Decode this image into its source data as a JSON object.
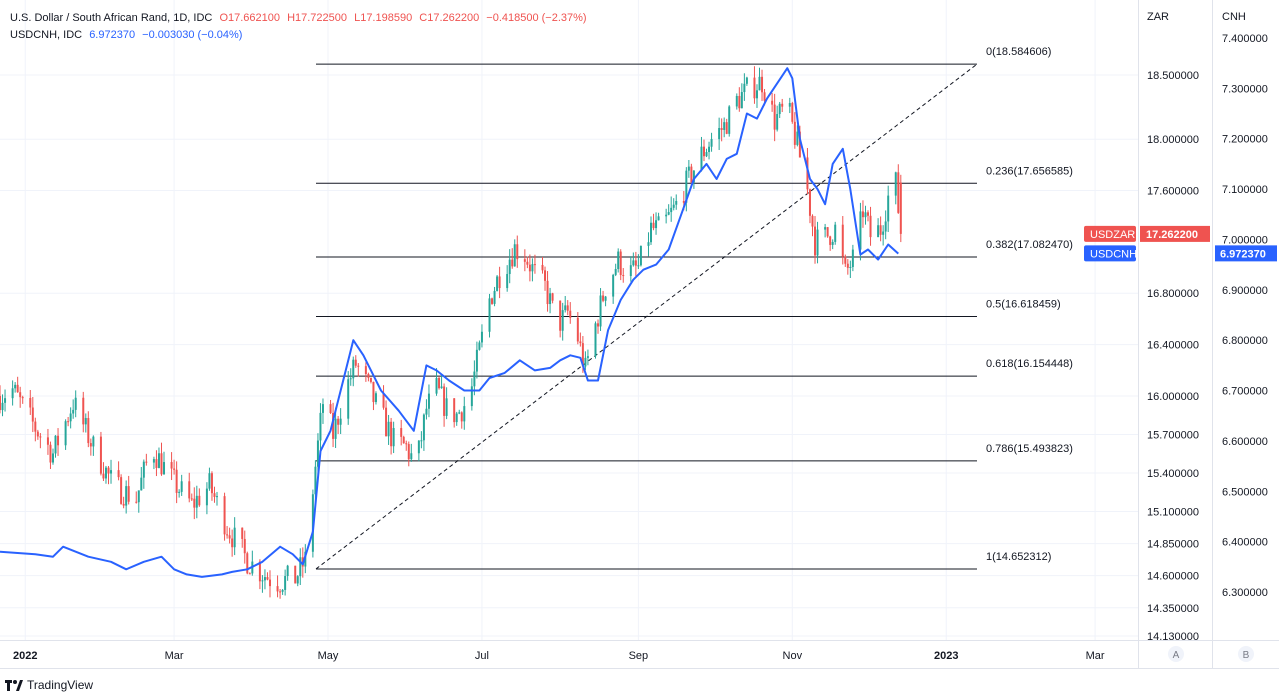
{
  "header": {
    "symbol_title": "U.S. Dollar / South African Rand, 1D, IDC",
    "ohlc": [
      "O17.662100",
      "H17.722500",
      "L17.198590",
      "C17.262200"
    ],
    "change": "−0.418500 (−2.37%)",
    "compare_symbol": "USDCNH, IDC",
    "compare_value": "6.972370",
    "compare_change": "−0.003030 (−0.04%)"
  },
  "brand": {
    "name": "TradingView"
  },
  "axis": {
    "left_unit": "ZAR",
    "right_unit": "CNH",
    "mode_a": "A",
    "mode_b": "B"
  },
  "colors": {
    "up": "#26a69a",
    "down": "#ef5350",
    "line": "#2962ff",
    "grid": "#f0f3fa"
  },
  "chart_data": {
    "type": "candlestick",
    "x_ticks": [
      "2022",
      "Mar",
      "May",
      "Jul",
      "Sep",
      "Nov",
      "2023",
      "Mar"
    ],
    "zar_ticks": [
      "18.500000",
      "18.000000",
      "17.600000",
      "16.800000",
      "16.400000",
      "16.000000",
      "15.700000",
      "15.400000",
      "15.100000",
      "14.850000",
      "14.600000",
      "14.350000",
      "14.130000"
    ],
    "cnh_ticks": [
      "7.400000",
      "7.300000",
      "7.200000",
      "7.100000",
      "7.000000",
      "6.900000",
      "6.800000",
      "6.700000",
      "6.600000",
      "6.500000",
      "6.400000",
      "6.300000"
    ],
    "last_usdzar": {
      "label": "USDZAR",
      "value": "17.262200"
    },
    "last_usdcnh": {
      "label": "USDCNH",
      "value": "6.972370"
    },
    "fib_levels": [
      {
        "label": "0(18.584606)",
        "value": 18.584606
      },
      {
        "label": "0.236(17.656585)",
        "value": 17.656585
      },
      {
        "label": "0.382(17.082470)",
        "value": 17.08247
      },
      {
        "label": "0.5(16.618459)",
        "value": 16.618459
      },
      {
        "label": "0.618(16.154448)",
        "value": 16.154448
      },
      {
        "label": "0.786(15.493823)",
        "value": 15.493823
      },
      {
        "label": "1(14.652312)",
        "value": 14.652312
      }
    ],
    "usdzar_path": [
      [
        "2021-12-22",
        16.0
      ],
      [
        "2021-12-27",
        16.05
      ],
      [
        "2022-01-05",
        15.75
      ],
      [
        "2022-01-12",
        15.55
      ],
      [
        "2022-01-20",
        15.95
      ],
      [
        "2022-01-28",
        15.6
      ],
      [
        "2022-02-05",
        15.3
      ],
      [
        "2022-02-14",
        15.2
      ],
      [
        "2022-02-20",
        15.6
      ],
      [
        "2022-02-28",
        15.35
      ],
      [
        "2022-03-08",
        15.15
      ],
      [
        "2022-03-15",
        15.3
      ],
      [
        "2022-03-22",
        14.98
      ],
      [
        "2022-03-30",
        14.72
      ],
      [
        "2022-04-05",
        14.62
      ],
      [
        "2022-04-10",
        14.55
      ],
      [
        "2022-04-18",
        14.58
      ],
      [
        "2022-04-22",
        14.72
      ],
      [
        "2022-04-26",
        15.45
      ],
      [
        "2022-04-29",
        15.95
      ],
      [
        "2022-05-03",
        15.7
      ],
      [
        "2022-05-08",
        16.05
      ],
      [
        "2022-05-12",
        16.25
      ],
      [
        "2022-05-16",
        16.1
      ],
      [
        "2022-05-22",
        15.85
      ],
      [
        "2022-05-27",
        15.65
      ],
      [
        "2022-06-01",
        15.6
      ],
      [
        "2022-06-05",
        15.45
      ],
      [
        "2022-06-09",
        15.9
      ],
      [
        "2022-06-13",
        16.05
      ],
      [
        "2022-06-17",
        15.9
      ],
      [
        "2022-06-21",
        15.85
      ],
      [
        "2022-06-26",
        15.98
      ],
      [
        "2022-06-30",
        16.35
      ],
      [
        "2022-07-04",
        16.75
      ],
      [
        "2022-07-08",
        16.95
      ],
      [
        "2022-07-11",
        17.05
      ],
      [
        "2022-07-14",
        17.15
      ],
      [
        "2022-07-18",
        17.1
      ],
      [
        "2022-07-22",
        16.95
      ],
      [
        "2022-07-26",
        16.85
      ],
      [
        "2022-07-31",
        16.55
      ],
      [
        "2022-08-04",
        16.65
      ],
      [
        "2022-08-08",
        16.45
      ],
      [
        "2022-08-11",
        16.2
      ],
      [
        "2022-08-15",
        16.55
      ],
      [
        "2022-08-19",
        16.85
      ],
      [
        "2022-08-24",
        17.05
      ],
      [
        "2022-08-28",
        16.95
      ],
      [
        "2022-09-01",
        17.0
      ],
      [
        "2022-09-06",
        17.3
      ],
      [
        "2022-09-10",
        17.3
      ],
      [
        "2022-09-15",
        17.45
      ],
      [
        "2022-09-20",
        17.65
      ],
      [
        "2022-09-25",
        17.85
      ],
      [
        "2022-09-30",
        18.0
      ],
      [
        "2022-10-05",
        18.1
      ],
      [
        "2022-10-10",
        18.3
      ],
      [
        "2022-10-15",
        18.4
      ],
      [
        "2022-10-20",
        18.45
      ],
      [
        "2022-10-25",
        18.15
      ],
      [
        "2022-10-30",
        18.25
      ],
      [
        "2022-11-03",
        17.95
      ],
      [
        "2022-11-07",
        17.6
      ],
      [
        "2022-11-10",
        17.2
      ],
      [
        "2022-11-15",
        17.25
      ],
      [
        "2022-11-18",
        17.3
      ],
      [
        "2022-11-22",
        16.95
      ],
      [
        "2022-11-26",
        17.1
      ],
      [
        "2022-11-29",
        17.45
      ],
      [
        "2022-12-02",
        17.25
      ],
      [
        "2022-12-06",
        17.3
      ],
      [
        "2022-12-09",
        17.55
      ],
      [
        "2022-12-12",
        17.65
      ],
      [
        "2022-12-14",
        17.262
      ]
    ],
    "usdcnh_path": [
      [
        "2021-12-22",
        6.38
      ],
      [
        "2022-01-05",
        6.375
      ],
      [
        "2022-01-12",
        6.37
      ],
      [
        "2022-01-16",
        6.39
      ],
      [
        "2022-01-26",
        6.37
      ],
      [
        "2022-02-04",
        6.36
      ],
      [
        "2022-02-10",
        6.345
      ],
      [
        "2022-02-17",
        6.36
      ],
      [
        "2022-02-24",
        6.37
      ],
      [
        "2022-03-01",
        6.345
      ],
      [
        "2022-03-06",
        6.335
      ],
      [
        "2022-03-12",
        6.33
      ],
      [
        "2022-03-20",
        6.335
      ],
      [
        "2022-03-24",
        6.34
      ],
      [
        "2022-03-30",
        6.345
      ],
      [
        "2022-04-05",
        6.36
      ],
      [
        "2022-04-12",
        6.39
      ],
      [
        "2022-04-17",
        6.375
      ],
      [
        "2022-04-21",
        6.355
      ],
      [
        "2022-04-25",
        6.42
      ],
      [
        "2022-04-28",
        6.58
      ],
      [
        "2022-05-02",
        6.62
      ],
      [
        "2022-05-07",
        6.72
      ],
      [
        "2022-05-11",
        6.8
      ],
      [
        "2022-05-15",
        6.77
      ],
      [
        "2022-05-22",
        6.7
      ],
      [
        "2022-05-29",
        6.66
      ],
      [
        "2022-06-04",
        6.62
      ],
      [
        "2022-06-09",
        6.75
      ],
      [
        "2022-06-13",
        6.74
      ],
      [
        "2022-06-18",
        6.72
      ],
      [
        "2022-06-24",
        6.7
      ],
      [
        "2022-06-30",
        6.7
      ],
      [
        "2022-07-04",
        6.725
      ],
      [
        "2022-07-10",
        6.735
      ],
      [
        "2022-07-16",
        6.76
      ],
      [
        "2022-07-22",
        6.74
      ],
      [
        "2022-07-28",
        6.745
      ],
      [
        "2022-08-01",
        6.76
      ],
      [
        "2022-08-05",
        6.77
      ],
      [
        "2022-08-09",
        6.765
      ],
      [
        "2022-08-12",
        6.72
      ],
      [
        "2022-08-16",
        6.72
      ],
      [
        "2022-08-20",
        6.82
      ],
      [
        "2022-08-25",
        6.88
      ],
      [
        "2022-08-30",
        6.92
      ],
      [
        "2022-09-03",
        6.94
      ],
      [
        "2022-09-08",
        6.95
      ],
      [
        "2022-09-13",
        6.98
      ],
      [
        "2022-09-18",
        7.05
      ],
      [
        "2022-09-23",
        7.12
      ],
      [
        "2022-09-28",
        7.15
      ],
      [
        "2022-10-02",
        7.12
      ],
      [
        "2022-10-06",
        7.16
      ],
      [
        "2022-10-10",
        7.17
      ],
      [
        "2022-10-14",
        7.25
      ],
      [
        "2022-10-18",
        7.24
      ],
      [
        "2022-10-22",
        7.28
      ],
      [
        "2022-10-26",
        7.31
      ],
      [
        "2022-10-30",
        7.34
      ],
      [
        "2022-11-01",
        7.32
      ],
      [
        "2022-11-04",
        7.2
      ],
      [
        "2022-11-08",
        7.12
      ],
      [
        "2022-11-11",
        7.1
      ],
      [
        "2022-11-14",
        7.07
      ],
      [
        "2022-11-17",
        7.15
      ],
      [
        "2022-11-21",
        7.18
      ],
      [
        "2022-11-24",
        7.1
      ],
      [
        "2022-11-28",
        6.97
      ],
      [
        "2022-12-01",
        6.98
      ],
      [
        "2022-12-05",
        6.96
      ],
      [
        "2022-12-09",
        6.99
      ],
      [
        "2022-12-13",
        6.972
      ]
    ]
  }
}
